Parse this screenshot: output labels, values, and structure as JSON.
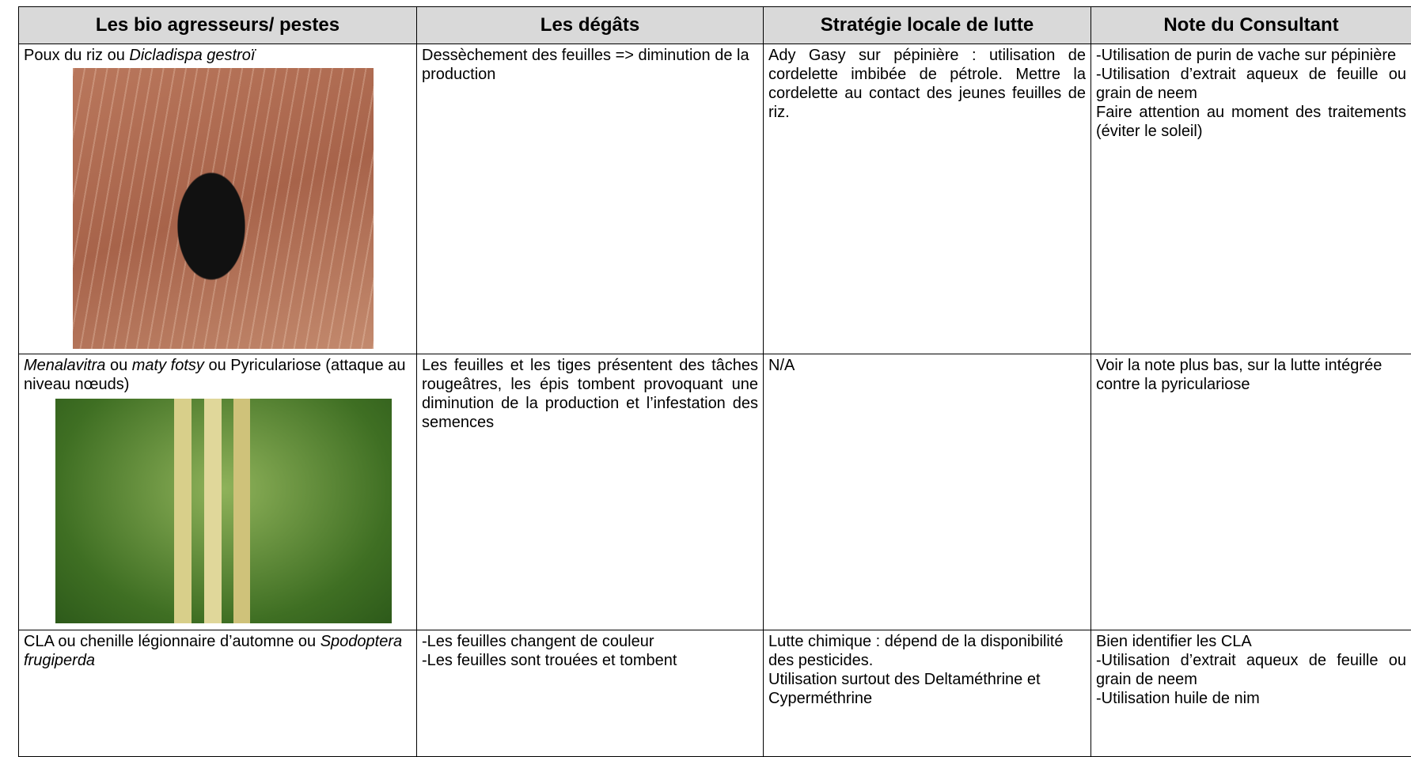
{
  "table": {
    "headers": [
      "Les bio agresseurs/ pestes",
      "Les dégâts",
      "Stratégie locale de lutte",
      "Note du Consultant"
    ],
    "rows": [
      {
        "cells": [
          [
            [
              {
                "text": "Poux du riz ou "
              },
              {
                "text": "Dicladispa gestroï",
                "italic": true
              }
            ]
          ],
          [
            [
              {
                "text": "Dessèchement des feuilles => diminution de la production"
              }
            ]
          ],
          [
            [
              {
                "text": "Ady Gasy sur pépinière : utilisation de cordelette imbibée de pétrole. Mettre la cordelette au contact des jeunes feuilles de riz."
              }
            ]
          ],
          [
            [
              {
                "text": "-Utilisation de purin de vache sur pépinière"
              }
            ],
            [
              {
                "text": "-Utilisation d’extrait aqueux de feuille ou grain de neem"
              }
            ],
            [
              {
                "text": "Faire attention au moment des traitements (éviter le soleil)"
              }
            ]
          ]
        ]
      },
      {
        "cells": [
          [
            [
              {
                "text": "Menalavitra",
                "italic": true
              },
              {
                "text": " ou "
              },
              {
                "text": "maty fotsy",
                "italic": true
              },
              {
                "text": " ou Pyriculariose (attaque au niveau nœuds)"
              }
            ]
          ],
          [
            [
              {
                "text": "Les feuilles et les tiges présentent des tâches rougeâtres, les épis tombent provoquant une diminution de la production et l’infestation des semences"
              }
            ]
          ],
          [
            [
              {
                "text": "N/A"
              }
            ]
          ],
          [
            [
              {
                "text": "Voir la note plus bas, sur la lutte intégrée contre la pyriculariose"
              }
            ]
          ]
        ]
      },
      {
        "cells": [
          [
            [
              {
                "text": "CLA ou chenille légionnaire d’automne ou "
              },
              {
                "text": "Spodoptera frugiperda",
                "italic": true
              }
            ]
          ],
          [
            [
              {
                "text": "-Les feuilles changent de couleur"
              }
            ],
            [
              {
                "text": "-Les feuilles sont trouées et tombent"
              }
            ]
          ],
          [
            [
              {
                "text": "Lutte chimique : dépend de la disponibilité des pesticides."
              }
            ],
            [
              {
                "text": "Utilisation surtout des Deltaméthrine et Cyperméthrine"
              }
            ]
          ],
          [
            [
              {
                "text": "Bien identifier les CLA"
              }
            ],
            [
              {
                "text": "-Utilisation d’extrait aqueux de feuille ou grain de neem"
              }
            ],
            [
              {
                "text": "-Utilisation huile de nim"
              }
            ]
          ]
        ]
      }
    ]
  }
}
